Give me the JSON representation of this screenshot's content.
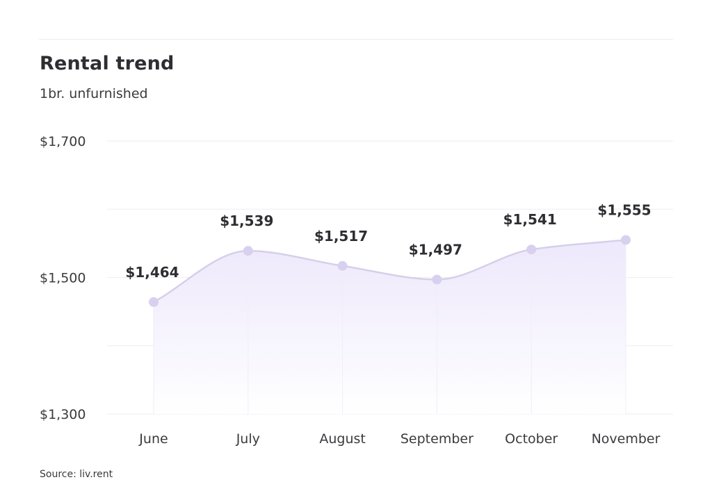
{
  "header": {
    "title": "Rental trend",
    "subtitle": "1br. unfurnished"
  },
  "footer": {
    "source": "Source: liv.rent"
  },
  "colors": {
    "line": "#d6cfe9",
    "point": "#d9d0ef",
    "fill_top": "#ebe6fb",
    "fill_bottom": "#ffffff",
    "grid": "#ededf2"
  },
  "chart_data": {
    "type": "area",
    "title": "Rental trend",
    "subtitle": "1br. unfurnished",
    "categories": [
      "June",
      "July",
      "August",
      "September",
      "October",
      "November"
    ],
    "series": [
      {
        "values": [
          1464,
          1539,
          1517,
          1497,
          1541,
          1555
        ]
      }
    ],
    "data_labels": [
      "$1,464",
      "$1,539",
      "$1,517",
      "$1,497",
      "$1,541",
      "$1,555"
    ],
    "ylim": [
      1300,
      1700
    ],
    "yticks": [
      1300,
      1500,
      1700
    ],
    "ytick_labels": [
      "$1,300",
      "$1,500",
      "$1,700"
    ],
    "grid": true,
    "legend": "none",
    "smooth": true
  }
}
